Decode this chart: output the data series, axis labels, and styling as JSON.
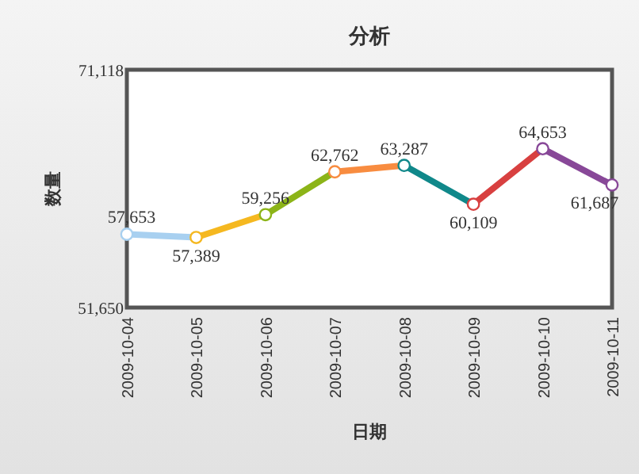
{
  "chart_data": {
    "type": "line",
    "title": "分析",
    "xlabel": "日期",
    "ylabel": "数量",
    "categories": [
      "2009-10-04",
      "2009-10-05",
      "2009-10-06",
      "2009-10-07",
      "2009-10-08",
      "2009-10-09",
      "2009-10-10",
      "2009-10-11"
    ],
    "values": [
      57653,
      57389,
      59256,
      62762,
      63287,
      60109,
      64653,
      61687
    ],
    "value_labels": [
      "57,653",
      "57,389",
      "59,256",
      "62,762",
      "63,287",
      "60,109",
      "64,653",
      "61,687"
    ],
    "colors": [
      "#a8d0f0",
      "#f5b820",
      "#8cb418",
      "#f88c40",
      "#10888a",
      "#d84040",
      "#884898",
      "#884898"
    ],
    "ylim": [
      51650,
      71118
    ],
    "yticks": [
      {
        "value": 51650,
        "label": "51,650"
      },
      {
        "value": 71118,
        "label": "71,118"
      }
    ],
    "marker": "circle",
    "grid": false
  }
}
